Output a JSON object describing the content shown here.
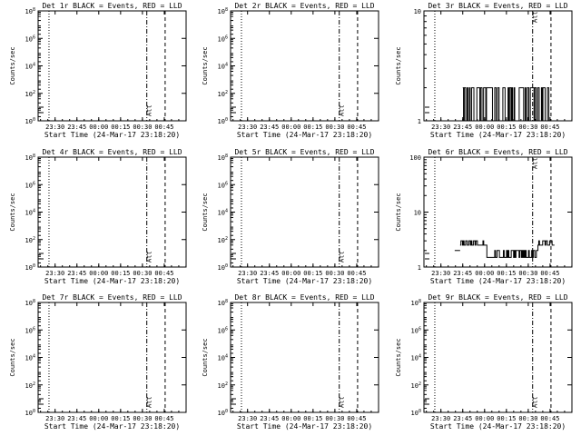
{
  "figure": {
    "background": "#ffffff",
    "foreground": "#000000"
  },
  "chart_data": [
    {
      "type": "line",
      "title": "Det 1r BLACK = Events, RED = LLD",
      "ylabel": "Counts/sec",
      "xlabel": "Start Time (24-Mar-17 23:18:20)",
      "x_tick_labels": [
        "23:30",
        "23:45",
        "00:00",
        "00:15",
        "00:30",
        "00:45"
      ],
      "yscale": "log",
      "ylim": [
        1,
        100000000
      ],
      "y_tick_labels": [
        "10^0",
        "10^2",
        "10^4",
        "10^6",
        "10^8"
      ],
      "annotation": "Att",
      "series": []
    },
    {
      "type": "line",
      "title": "Det 2r BLACK = Events, RED = LLD",
      "ylabel": "Counts/sec",
      "xlabel": "Start Time (24-Mar-17 23:18:20)",
      "x_tick_labels": [
        "23:30",
        "23:45",
        "00:00",
        "00:15",
        "00:30",
        "00:45"
      ],
      "yscale": "log",
      "ylim": [
        1,
        100000000
      ],
      "y_tick_labels": [
        "10^0",
        "10^2",
        "10^4",
        "10^6",
        "10^8"
      ],
      "annotation": "Att",
      "series": []
    },
    {
      "type": "line",
      "title": "Det 3r BLACK = Events, RED = LLD",
      "ylabel": "Counts/sec",
      "xlabel": "Start Time (24-Mar-17 23:18:20)",
      "x_tick_labels": [
        "23:30",
        "23:45",
        "00:00",
        "00:15",
        "00:30",
        "00:45"
      ],
      "yscale": "log",
      "ylim": [
        1,
        10
      ],
      "y_tick_labels": [
        "1",
        "10"
      ],
      "annotation": "Att",
      "series": [
        {
          "segment": [
            23.75,
            24.77
          ],
          "levels": [
            1,
            2
          ],
          "pattern": "dense"
        }
      ]
    },
    {
      "type": "line",
      "title": "Det 4r BLACK = Events, RED = LLD",
      "ylabel": "Counts/sec",
      "xlabel": "Start Time (24-Mar-17 23:18:20)",
      "x_tick_labels": [
        "23:30",
        "23:45",
        "00:00",
        "00:15",
        "00:30",
        "00:45"
      ],
      "yscale": "log",
      "ylim": [
        1,
        100000000
      ],
      "y_tick_labels": [
        "10^0",
        "10^2",
        "10^4",
        "10^6",
        "10^8"
      ],
      "annotation": "Att",
      "series": []
    },
    {
      "type": "line",
      "title": "Det 5r BLACK = Events, RED = LLD",
      "ylabel": "Counts/sec",
      "xlabel": "Start Time (24-Mar-17 23:18:20)",
      "x_tick_labels": [
        "23:30",
        "23:45",
        "00:00",
        "00:15",
        "00:30",
        "00:45"
      ],
      "yscale": "log",
      "ylim": [
        1,
        100000000
      ],
      "y_tick_labels": [
        "10^0",
        "10^2",
        "10^4",
        "10^6",
        "10^8"
      ],
      "annotation": "Att",
      "series": []
    },
    {
      "type": "line",
      "title": "Det 6r BLACK = Events, RED = LLD",
      "ylabel": "Counts/sec",
      "xlabel": "Start Time (24-Mar-17 23:18:20)",
      "x_tick_labels": [
        "23:30",
        "23:45",
        "00:00",
        "00:15",
        "00:30",
        "00:45"
      ],
      "yscale": "log",
      "ylim": [
        1,
        100
      ],
      "y_tick_labels": [
        "1",
        "10",
        "100"
      ],
      "annotation": "Att",
      "series": [
        {
          "segment": [
            23.72,
            24.8
          ],
          "levels": [
            1.5,
            2,
            2.5,
            3
          ],
          "pattern": "step"
        }
      ]
    },
    {
      "type": "line",
      "title": "Det 7r BLACK = Events, RED = LLD",
      "ylabel": "Counts/sec",
      "xlabel": "Start Time (24-Mar-17 23:18:20)",
      "x_tick_labels": [
        "23:30",
        "23:45",
        "00:00",
        "00:15",
        "00:30",
        "00:45"
      ],
      "yscale": "log",
      "ylim": [
        1,
        100000000
      ],
      "y_tick_labels": [
        "10^0",
        "10^2",
        "10^4",
        "10^6",
        "10^8"
      ],
      "annotation": "Att",
      "series": []
    },
    {
      "type": "line",
      "title": "Det 8r BLACK = Events, RED = LLD",
      "ylabel": "Counts/sec",
      "xlabel": "Start Time (24-Mar-17 23:18:20)",
      "x_tick_labels": [
        "23:30",
        "23:45",
        "00:00",
        "00:15",
        "00:30",
        "00:45"
      ],
      "yscale": "log",
      "ylim": [
        1,
        100000000
      ],
      "y_tick_labels": [
        "10^0",
        "10^2",
        "10^4",
        "10^6",
        "10^8"
      ],
      "annotation": "Att",
      "series": []
    },
    {
      "type": "line",
      "title": "Det 9r BLACK = Events, RED = LLD",
      "ylabel": "Counts/sec",
      "xlabel": "Start Time (24-Mar-17 23:18:20)",
      "x_tick_labels": [
        "23:30",
        "23:45",
        "00:00",
        "00:15",
        "00:30",
        "00:45"
      ],
      "yscale": "log",
      "ylim": [
        1,
        100000000
      ],
      "y_tick_labels": [
        "10^0",
        "10^2",
        "10^4",
        "10^6",
        "10^8"
      ],
      "annotation": "Att",
      "series": []
    }
  ]
}
